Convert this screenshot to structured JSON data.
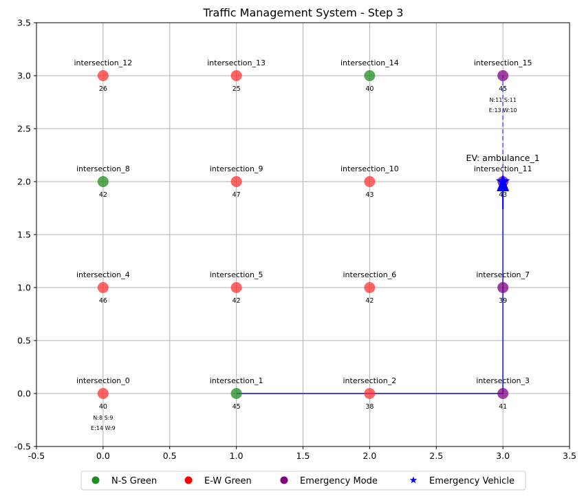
{
  "chart_data": {
    "type": "scatter",
    "title": "Traffic Management System - Step 3",
    "xlim": [
      -0.5,
      3.5
    ],
    "ylim": [
      -0.5,
      3.5
    ],
    "xticks": [
      "-0.5",
      "0.0",
      "0.5",
      "1.0",
      "1.5",
      "2.0",
      "2.5",
      "3.0",
      "3.5"
    ],
    "yticks": [
      "-0.5",
      "0.0",
      "0.5",
      "1.0",
      "1.5",
      "2.0",
      "2.5",
      "3.0",
      "3.5"
    ],
    "grid": true,
    "colors": {
      "ns_green": "#228b22",
      "ew_green": "#ff3333",
      "emergency": "#800080",
      "vehicle": "#0000ff",
      "route": "#3333dd"
    },
    "intersections": [
      {
        "name": "intersection_0",
        "x": 0,
        "y": 0,
        "state": "ew",
        "value": "40",
        "queue1": "N:8 S:9",
        "queue2": "E:14 W:9"
      },
      {
        "name": "intersection_1",
        "x": 1,
        "y": 0,
        "state": "ns",
        "value": "45"
      },
      {
        "name": "intersection_2",
        "x": 2,
        "y": 0,
        "state": "ew",
        "value": "38"
      },
      {
        "name": "intersection_3",
        "x": 3,
        "y": 0,
        "state": "emergency",
        "value": "41"
      },
      {
        "name": "intersection_4",
        "x": 0,
        "y": 1,
        "state": "ew",
        "value": "46"
      },
      {
        "name": "intersection_5",
        "x": 1,
        "y": 1,
        "state": "ew",
        "value": "42"
      },
      {
        "name": "intersection_6",
        "x": 2,
        "y": 1,
        "state": "ew",
        "value": "42"
      },
      {
        "name": "intersection_7",
        "x": 3,
        "y": 1,
        "state": "emergency",
        "value": "39"
      },
      {
        "name": "intersection_8",
        "x": 0,
        "y": 2,
        "state": "ns",
        "value": "42"
      },
      {
        "name": "intersection_9",
        "x": 1,
        "y": 2,
        "state": "ew",
        "value": "47"
      },
      {
        "name": "intersection_10",
        "x": 2,
        "y": 2,
        "state": "ew",
        "value": "43"
      },
      {
        "name": "intersection_11",
        "x": 3,
        "y": 2,
        "state": "emergency",
        "value": "43"
      },
      {
        "name": "intersection_12",
        "x": 0,
        "y": 3,
        "state": "ew",
        "value": "26"
      },
      {
        "name": "intersection_13",
        "x": 1,
        "y": 3,
        "state": "ew",
        "value": "25"
      },
      {
        "name": "intersection_14",
        "x": 2,
        "y": 3,
        "state": "ns",
        "value": "40"
      },
      {
        "name": "intersection_15",
        "x": 3,
        "y": 3,
        "state": "emergency",
        "value": "45",
        "queue1": "N:11 S:11",
        "queue2": "E:13 W:10"
      }
    ],
    "route_travelled": [
      [
        1,
        0
      ],
      [
        2,
        0
      ],
      [
        3,
        0
      ],
      [
        3,
        1
      ],
      [
        3,
        2
      ]
    ],
    "route_planned": [
      [
        3,
        2
      ],
      [
        3,
        3
      ]
    ],
    "vehicle": {
      "label": "EV: ambulance_1",
      "x": 3,
      "y": 2
    },
    "legend": [
      {
        "label": "N-S Green",
        "marker": "circle",
        "color": "#228b22"
      },
      {
        "label": "E-W Green",
        "marker": "circle",
        "color": "#ff0000"
      },
      {
        "label": "Emergency Mode",
        "marker": "circle",
        "color": "#800080"
      },
      {
        "label": "Emergency Vehicle",
        "marker": "star",
        "color": "#0000ff"
      }
    ],
    "legend_position": "bottom-center"
  }
}
